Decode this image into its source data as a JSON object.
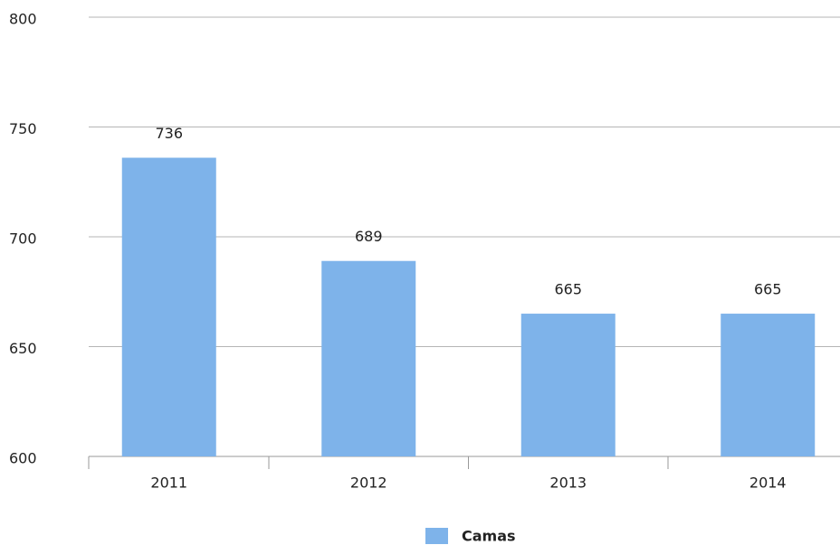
{
  "chart_data": {
    "type": "bar",
    "categories": [
      "2011",
      "2012",
      "2013",
      "2014"
    ],
    "series": [
      {
        "name": "Camas",
        "color": "#7eb3ea",
        "values": [
          736,
          689,
          665,
          665
        ]
      }
    ],
    "ylim": [
      600,
      800
    ],
    "yticks": [
      600,
      650,
      700,
      750,
      800
    ],
    "grid": true,
    "legend": "bottom"
  }
}
